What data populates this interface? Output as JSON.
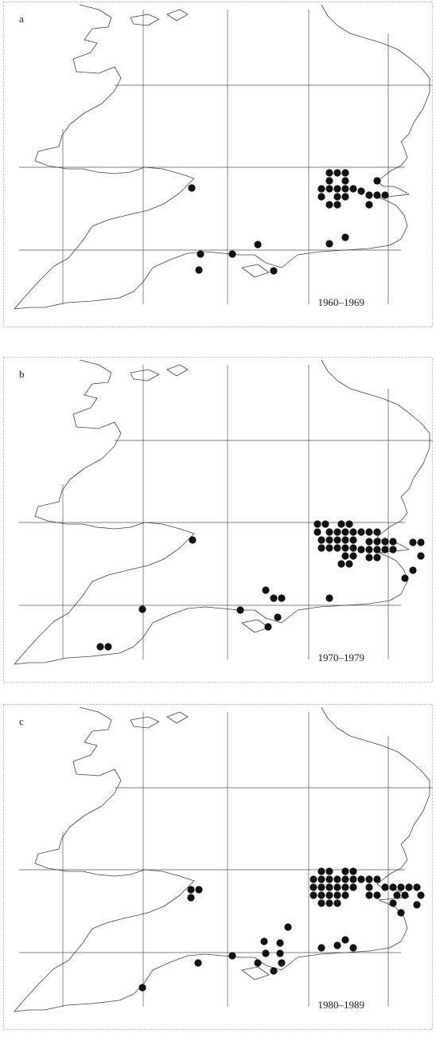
{
  "panels": [
    {
      "letter": "a",
      "period": "1960–1969",
      "records": [
        [
          410,
          215
        ],
        [
          420,
          215
        ],
        [
          430,
          215
        ],
        [
          410,
          225
        ],
        [
          430,
          225
        ],
        [
          400,
          235
        ],
        [
          410,
          235
        ],
        [
          420,
          235
        ],
        [
          430,
          235
        ],
        [
          440,
          235
        ],
        [
          470,
          225
        ],
        [
          450,
          238
        ],
        [
          400,
          245
        ],
        [
          420,
          245
        ],
        [
          430,
          245
        ],
        [
          460,
          243
        ],
        [
          470,
          243
        ],
        [
          480,
          243
        ],
        [
          410,
          255
        ],
        [
          420,
          255
        ],
        [
          460,
          255
        ],
        [
          237,
          234
        ],
        [
          430,
          296
        ],
        [
          410,
          304
        ],
        [
          320,
          305
        ],
        [
          248,
          317
        ],
        [
          288,
          317
        ],
        [
          246,
          337
        ],
        [
          340,
          338
        ]
      ]
    },
    {
      "letter": "b",
      "period": "1970–1979",
      "records": [
        [
          395,
          210
        ],
        [
          405,
          210
        ],
        [
          425,
          210
        ],
        [
          435,
          210
        ],
        [
          395,
          220
        ],
        [
          410,
          220
        ],
        [
          420,
          220
        ],
        [
          430,
          220
        ],
        [
          440,
          220
        ],
        [
          450,
          220
        ],
        [
          460,
          220
        ],
        [
          470,
          220
        ],
        [
          400,
          230
        ],
        [
          410,
          230
        ],
        [
          420,
          230
        ],
        [
          430,
          230
        ],
        [
          440,
          230
        ],
        [
          460,
          232
        ],
        [
          470,
          232
        ],
        [
          480,
          232
        ],
        [
          490,
          232
        ],
        [
          515,
          233
        ],
        [
          525,
          233
        ],
        [
          400,
          240
        ],
        [
          410,
          240
        ],
        [
          420,
          240
        ],
        [
          430,
          240
        ],
        [
          440,
          240
        ],
        [
          450,
          242
        ],
        [
          460,
          242
        ],
        [
          470,
          242
        ],
        [
          480,
          242
        ],
        [
          490,
          242
        ],
        [
          460,
          252
        ],
        [
          470,
          252
        ],
        [
          430,
          250
        ],
        [
          440,
          250
        ],
        [
          425,
          260
        ],
        [
          435,
          260
        ],
        [
          525,
          250
        ],
        [
          515,
          268
        ],
        [
          505,
          278
        ],
        [
          238,
          230
        ],
        [
          330,
          293
        ],
        [
          340,
          303
        ],
        [
          350,
          303
        ],
        [
          175,
          317
        ],
        [
          298,
          318
        ],
        [
          345,
          327
        ],
        [
          333,
          339
        ],
        [
          410,
          303
        ],
        [
          122,
          364
        ],
        [
          132,
          364
        ]
      ]
    },
    {
      "letter": "c",
      "period": "1980–1989",
      "records": [
        [
          400,
          210
        ],
        [
          410,
          210
        ],
        [
          430,
          210
        ],
        [
          440,
          210
        ],
        [
          390,
          220
        ],
        [
          400,
          220
        ],
        [
          410,
          220
        ],
        [
          420,
          220
        ],
        [
          430,
          220
        ],
        [
          440,
          220
        ],
        [
          450,
          220
        ],
        [
          460,
          220
        ],
        [
          470,
          220
        ],
        [
          390,
          230
        ],
        [
          400,
          230
        ],
        [
          410,
          230
        ],
        [
          420,
          230
        ],
        [
          430,
          230
        ],
        [
          440,
          230
        ],
        [
          460,
          230
        ],
        [
          480,
          230
        ],
        [
          490,
          230
        ],
        [
          500,
          230
        ],
        [
          510,
          230
        ],
        [
          520,
          230
        ],
        [
          390,
          240
        ],
        [
          400,
          240
        ],
        [
          410,
          240
        ],
        [
          420,
          240
        ],
        [
          430,
          240
        ],
        [
          460,
          240
        ],
        [
          470,
          240
        ],
        [
          495,
          240
        ],
        [
          505,
          240
        ],
        [
          525,
          240
        ],
        [
          400,
          250
        ],
        [
          410,
          250
        ],
        [
          420,
          250
        ],
        [
          490,
          250
        ],
        [
          520,
          252
        ],
        [
          500,
          262
        ],
        [
          236,
          233
        ],
        [
          246,
          233
        ],
        [
          236,
          243
        ],
        [
          358,
          280
        ],
        [
          328,
          298
        ],
        [
          348,
          300
        ],
        [
          430,
          296
        ],
        [
          420,
          303
        ],
        [
          400,
          306
        ],
        [
          440,
          306
        ],
        [
          288,
          316
        ],
        [
          330,
          313
        ],
        [
          348,
          313
        ],
        [
          245,
          325
        ],
        [
          320,
          325
        ],
        [
          350,
          325
        ],
        [
          340,
          335
        ],
        [
          175,
          356
        ]
      ]
    }
  ]
}
